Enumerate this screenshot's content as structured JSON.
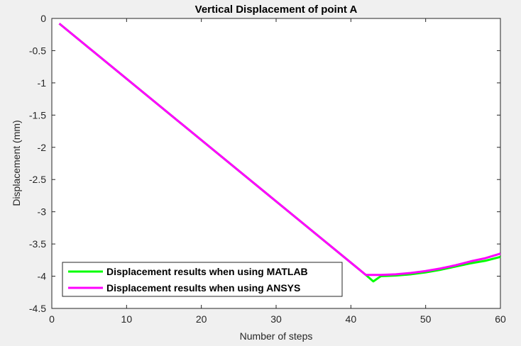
{
  "chart_data": {
    "type": "line",
    "title": "Vertical Displacement of point A",
    "xlabel": "Number of steps",
    "ylabel": "Displacement (mm)",
    "xlim": [
      0,
      60
    ],
    "ylim": [
      -4.5,
      0
    ],
    "xticks": [
      0,
      10,
      20,
      30,
      40,
      50,
      60
    ],
    "yticks": [
      0,
      -0.5,
      -1,
      -1.5,
      -2,
      -2.5,
      -3,
      -3.5,
      -4,
      -4.5
    ],
    "xtick_labels": [
      "0",
      "10",
      "20",
      "30",
      "40",
      "50",
      "60"
    ],
    "ytick_labels": [
      "0",
      "-0.5",
      "-1",
      "-1.5",
      "-2",
      "-2.5",
      "-3",
      "-3.5",
      "-4",
      "-4.5"
    ],
    "grid": false,
    "legend_position": "bottom-left",
    "series": [
      {
        "name": "Displacement results when using MATLAB",
        "color": "#00ff00",
        "x": [
          1,
          42,
          43,
          44,
          46,
          48,
          50,
          52,
          54,
          56,
          58,
          60
        ],
        "y": [
          -0.08,
          -3.98,
          -4.08,
          -4.0,
          -3.99,
          -3.97,
          -3.94,
          -3.9,
          -3.85,
          -3.8,
          -3.76,
          -3.7
        ]
      },
      {
        "name": "Displacement results when using ANSYS",
        "color": "#ff00ff",
        "x": [
          1,
          42,
          43,
          44,
          46,
          48,
          50,
          52,
          54,
          56,
          58,
          60
        ],
        "y": [
          -0.08,
          -3.98,
          -3.98,
          -3.98,
          -3.97,
          -3.95,
          -3.92,
          -3.88,
          -3.83,
          -3.77,
          -3.72,
          -3.65
        ]
      }
    ]
  }
}
